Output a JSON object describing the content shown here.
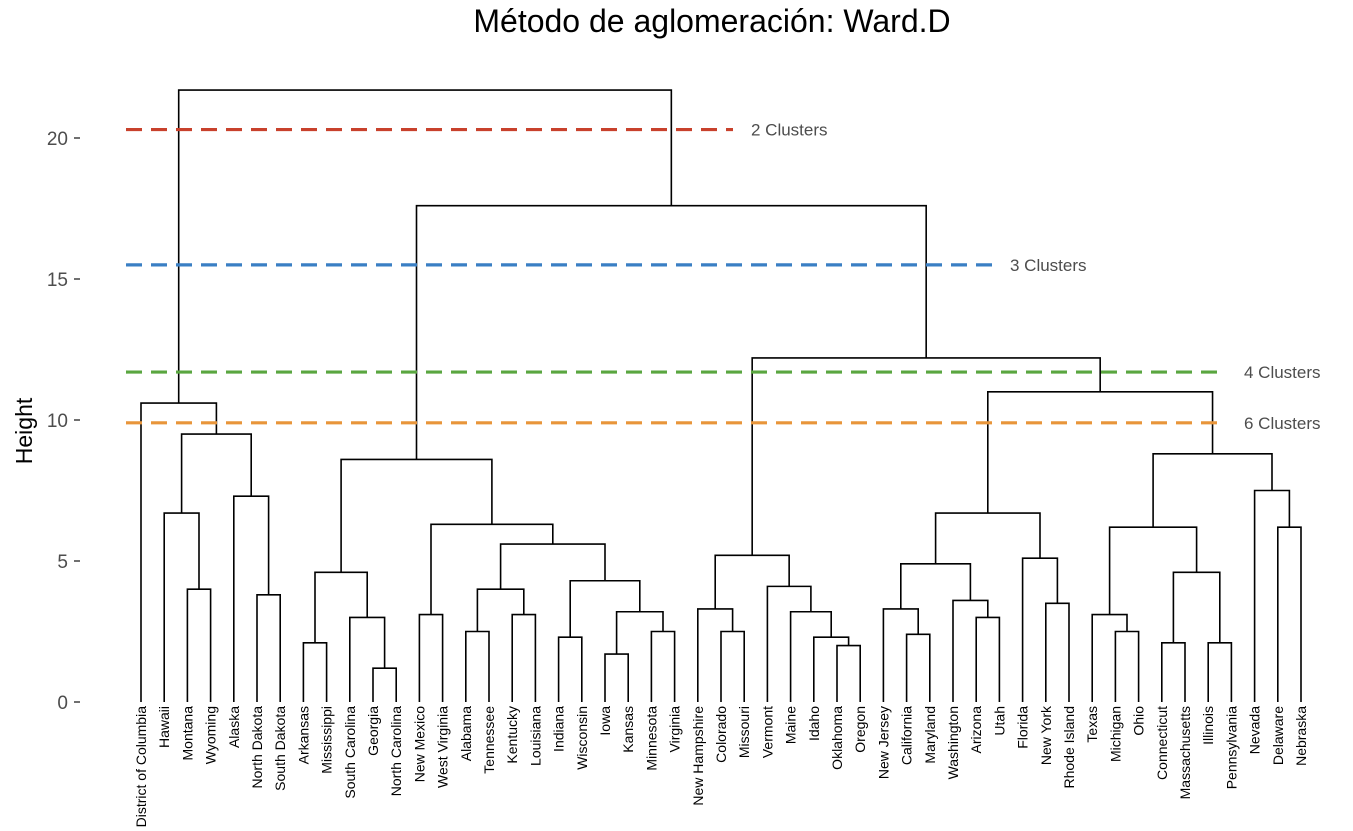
{
  "chart_data": {
    "type": "dendrogram",
    "title": "Método de aglomeración: Ward.D",
    "ylabel": "Height",
    "xlabel": "",
    "ylim": [
      0,
      22
    ],
    "yticks": [
      0,
      5,
      10,
      15,
      20
    ],
    "grid": false,
    "leaves": [
      "District of Columbia",
      "Hawaii",
      "Montana",
      "Wyoming",
      "Alaska",
      "North Dakota",
      "South Dakota",
      "Arkansas",
      "Mississippi",
      "South Carolina",
      "Georgia",
      "North Carolina",
      "New Mexico",
      "West Virginia",
      "Alabama",
      "Tennessee",
      "Kentucky",
      "Louisiana",
      "Indiana",
      "Wisconsin",
      "Iowa",
      "Kansas",
      "Minnesota",
      "Virginia",
      "New Hampshire",
      "Colorado",
      "Missouri",
      "Vermont",
      "Maine",
      "Idaho",
      "Oklahoma",
      "Oregon",
      "New Jersey",
      "California",
      "Maryland",
      "Washington",
      "Arizona",
      "Utah",
      "Florida",
      "New York",
      "Rhode Island",
      "Texas",
      "Michigan",
      "Ohio",
      "Connecticut",
      "Massachusetts",
      "Illinois",
      "Pennsylvania",
      "Nevada",
      "Delaware",
      "Nebraska"
    ],
    "merges": [
      {
        "a": "Montana",
        "b": "Wyoming",
        "height": 4.0
      },
      {
        "a": "North Dakota",
        "b": "South Dakota",
        "height": 3.8
      },
      {
        "a": "Hawaii",
        "b": [
          "Montana",
          "Wyoming"
        ],
        "height": 6.7
      },
      {
        "a": "Alaska",
        "b": [
          "North Dakota",
          "South Dakota"
        ],
        "height": 7.3
      },
      {
        "a": [
          "Hawaii",
          "Montana",
          "Wyoming"
        ],
        "b": [
          "Alaska",
          "North Dakota",
          "South Dakota"
        ],
        "height": 9.5
      },
      {
        "a": "District of Columbia",
        "b": [
          "Hawaii",
          "Montana",
          "Wyoming",
          "Alaska",
          "North Dakota",
          "South Dakota"
        ],
        "height": 10.6
      },
      {
        "a": "Arkansas",
        "b": "Mississippi",
        "height": 2.1
      },
      {
        "a": "Georgia",
        "b": "North Carolina",
        "height": 1.2
      },
      {
        "a": "South Carolina",
        "b": [
          "Georgia",
          "North Carolina"
        ],
        "height": 3.0
      },
      {
        "a": [
          "Arkansas",
          "Mississippi"
        ],
        "b": [
          "South Carolina",
          "Georgia",
          "North Carolina"
        ],
        "height": 4.6
      },
      {
        "a": "New Mexico",
        "b": "West Virginia",
        "height": 3.1
      },
      {
        "a": "Alabama",
        "b": "Tennessee",
        "height": 2.5
      },
      {
        "a": "Kentucky",
        "b": "Louisiana",
        "height": 3.1
      },
      {
        "a": [
          "Alabama",
          "Tennessee"
        ],
        "b": [
          "Kentucky",
          "Louisiana"
        ],
        "height": 4.0
      },
      {
        "a": "Indiana",
        "b": "Wisconsin",
        "height": 2.3
      },
      {
        "a": "Iowa",
        "b": "Kansas",
        "height": 1.7
      },
      {
        "a": "Minnesota",
        "b": "Virginia",
        "height": 2.5
      },
      {
        "a": [
          "Iowa",
          "Kansas"
        ],
        "b": [
          "Minnesota",
          "Virginia"
        ],
        "height": 3.2
      },
      {
        "a": [
          "Indiana",
          "Wisconsin"
        ],
        "b": [
          "Iowa",
          "Kansas",
          "Minnesota",
          "Virginia"
        ],
        "height": 4.3
      },
      {
        "a": [
          "Alabama",
          "Tennessee",
          "Kentucky",
          "Louisiana"
        ],
        "b": [
          "Indiana",
          "Wisconsin",
          "Iowa",
          "Kansas",
          "Minnesota",
          "Virginia"
        ],
        "height": 5.6
      },
      {
        "a": [
          "New Mexico",
          "West Virginia"
        ],
        "b": [
          "Alabama",
          "Tennessee",
          "Kentucky",
          "Louisiana",
          "Indiana",
          "Wisconsin",
          "Iowa",
          "Kansas",
          "Minnesota",
          "Virginia"
        ],
        "height": 6.3
      },
      {
        "a": [
          "Arkansas",
          "Mississippi",
          "South Carolina",
          "Georgia",
          "North Carolina"
        ],
        "b": [
          "New Mexico",
          "West Virginia",
          "Alabama",
          "Tennessee",
          "Kentucky",
          "Louisiana",
          "Indiana",
          "Wisconsin",
          "Iowa",
          "Kansas",
          "Minnesota",
          "Virginia"
        ],
        "height": 8.6
      },
      {
        "a": "Colorado",
        "b": "Missouri",
        "height": 2.5
      },
      {
        "a": "New Hampshire",
        "b": [
          "Colorado",
          "Missouri"
        ],
        "height": 3.3
      },
      {
        "a": "Oklahoma",
        "b": "Oregon",
        "height": 2.0
      },
      {
        "a": "Idaho",
        "b": [
          "Oklahoma",
          "Oregon"
        ],
        "height": 2.3
      },
      {
        "a": "Maine",
        "b": [
          "Idaho",
          "Oklahoma",
          "Oregon"
        ],
        "height": 3.2
      },
      {
        "a": "Vermont",
        "b": [
          "Maine",
          "Idaho",
          "Oklahoma",
          "Oregon"
        ],
        "height": 4.1
      },
      {
        "a": [
          "New Hampshire",
          "Colorado",
          "Missouri"
        ],
        "b": [
          "Vermont",
          "Maine",
          "Idaho",
          "Oklahoma",
          "Oregon"
        ],
        "height": 5.2
      },
      {
        "a": "California",
        "b": "Maryland",
        "height": 2.4
      },
      {
        "a": "New Jersey",
        "b": [
          "California",
          "Maryland"
        ],
        "height": 3.3
      },
      {
        "a": "Arizona",
        "b": "Utah",
        "height": 3.0
      },
      {
        "a": "Washington",
        "b": [
          "Arizona",
          "Utah"
        ],
        "height": 3.6
      },
      {
        "a": [
          "New Jersey",
          "California",
          "Maryland"
        ],
        "b": [
          "Washington",
          "Arizona",
          "Utah"
        ],
        "height": 4.9
      },
      {
        "a": "New York",
        "b": "Rhode Island",
        "height": 3.5
      },
      {
        "a": "Florida",
        "b": [
          "New York",
          "Rhode Island"
        ],
        "height": 5.1
      },
      {
        "a": [
          "New Jersey",
          "California",
          "Maryland",
          "Washington",
          "Arizona",
          "Utah"
        ],
        "b": [
          "Florida",
          "New York",
          "Rhode Island"
        ],
        "height": 6.7
      },
      {
        "a": "Michigan",
        "b": "Ohio",
        "height": 2.5
      },
      {
        "a": "Texas",
        "b": [
          "Michigan",
          "Ohio"
        ],
        "height": 3.1
      },
      {
        "a": "Connecticut",
        "b": "Massachusetts",
        "height": 2.1
      },
      {
        "a": "Illinois",
        "b": "Pennsylvania",
        "height": 2.1
      },
      {
        "a": [
          "Connecticut",
          "Massachusetts"
        ],
        "b": [
          "Illinois",
          "Pennsylvania"
        ],
        "height": 4.6
      },
      {
        "a": [
          "Texas",
          "Michigan",
          "Ohio"
        ],
        "b": [
          "Connecticut",
          "Massachusetts",
          "Illinois",
          "Pennsylvania"
        ],
        "height": 6.2
      },
      {
        "a": "Delaware",
        "b": "Nebraska",
        "height": 6.2
      },
      {
        "a": "Nevada",
        "b": [
          "Delaware",
          "Nebraska"
        ],
        "height": 7.5
      },
      {
        "a": [
          "Texas",
          "Michigan",
          "Ohio",
          "Connecticut",
          "Massachusetts",
          "Illinois",
          "Pennsylvania"
        ],
        "b": [
          "Nevada",
          "Delaware",
          "Nebraska"
        ],
        "height": 8.8
      },
      {
        "a": [
          "New Jersey",
          "California",
          "Maryland",
          "Washington",
          "Arizona",
          "Utah",
          "Florida",
          "New York",
          "Rhode Island"
        ],
        "b": [
          "Texas",
          "Michigan",
          "Ohio",
          "Connecticut",
          "Massachusetts",
          "Illinois",
          "Pennsylvania",
          "Nevada",
          "Delaware",
          "Nebraska"
        ],
        "height": 11.0
      },
      {
        "a": [
          "New Hampshire",
          "Colorado",
          "Missouri",
          "Vermont",
          "Maine",
          "Idaho",
          "Oklahoma",
          "Oregon"
        ],
        "b": [
          "New Jersey",
          "California",
          "Maryland",
          "Washington",
          "Arizona",
          "Utah",
          "Florida",
          "New York",
          "Rhode Island",
          "Texas",
          "Michigan",
          "Ohio",
          "Connecticut",
          "Massachusetts",
          "Illinois",
          "Pennsylvania",
          "Nevada",
          "Delaware",
          "Nebraska"
        ],
        "height": 12.2
      },
      {
        "a": [
          "Arkansas",
          "Mississippi",
          "South Carolina",
          "Georgia",
          "North Carolina",
          "New Mexico",
          "West Virginia",
          "Alabama",
          "Tennessee",
          "Kentucky",
          "Louisiana",
          "Indiana",
          "Wisconsin",
          "Iowa",
          "Kansas",
          "Minnesota",
          "Virginia"
        ],
        "b": [
          "New Hampshire",
          "Colorado",
          "Missouri",
          "Vermont",
          "Maine",
          "Idaho",
          "Oklahoma",
          "Oregon",
          "New Jersey",
          "California",
          "Maryland",
          "Washington",
          "Arizona",
          "Utah",
          "Florida",
          "New York",
          "Rhode Island",
          "Texas",
          "Michigan",
          "Ohio",
          "Connecticut",
          "Massachusetts",
          "Illinois",
          "Pennsylvania",
          "Nevada",
          "Delaware",
          "Nebraska"
        ],
        "height": 17.6
      },
      {
        "a": [
          "District of Columbia",
          "Hawaii",
          "Montana",
          "Wyoming",
          "Alaska",
          "North Dakota",
          "South Dakota"
        ],
        "b": [
          "Arkansas",
          "Mississippi",
          "South Carolina",
          "Georgia",
          "North Carolina",
          "New Mexico",
          "West Virginia",
          "Alabama",
          "Tennessee",
          "Kentucky",
          "Louisiana",
          "Indiana",
          "Wisconsin",
          "Iowa",
          "Kansas",
          "Minnesota",
          "Virginia",
          "New Hampshire",
          "Colorado",
          "Missouri",
          "Vermont",
          "Maine",
          "Idaho",
          "Oklahoma",
          "Oregon",
          "New Jersey",
          "California",
          "Maryland",
          "Washington",
          "Arizona",
          "Utah",
          "Florida",
          "New York",
          "Rhode Island",
          "Texas",
          "Michigan",
          "Ohio",
          "Connecticut",
          "Massachusetts",
          "Illinois",
          "Pennsylvania",
          "Nevada",
          "Delaware",
          "Nebraska"
        ],
        "height": 21.7
      }
    ],
    "cut_lines": [
      {
        "label": "2 Clusters",
        "height": 20.3,
        "color": "#c8412c"
      },
      {
        "label": "3 Clusters",
        "height": 15.5,
        "color": "#3a7fc4"
      },
      {
        "label": "4 Clusters",
        "height": 11.7,
        "color": "#5aa640"
      },
      {
        "label": "6 Clusters",
        "height": 9.9,
        "color": "#e8953a"
      }
    ]
  }
}
